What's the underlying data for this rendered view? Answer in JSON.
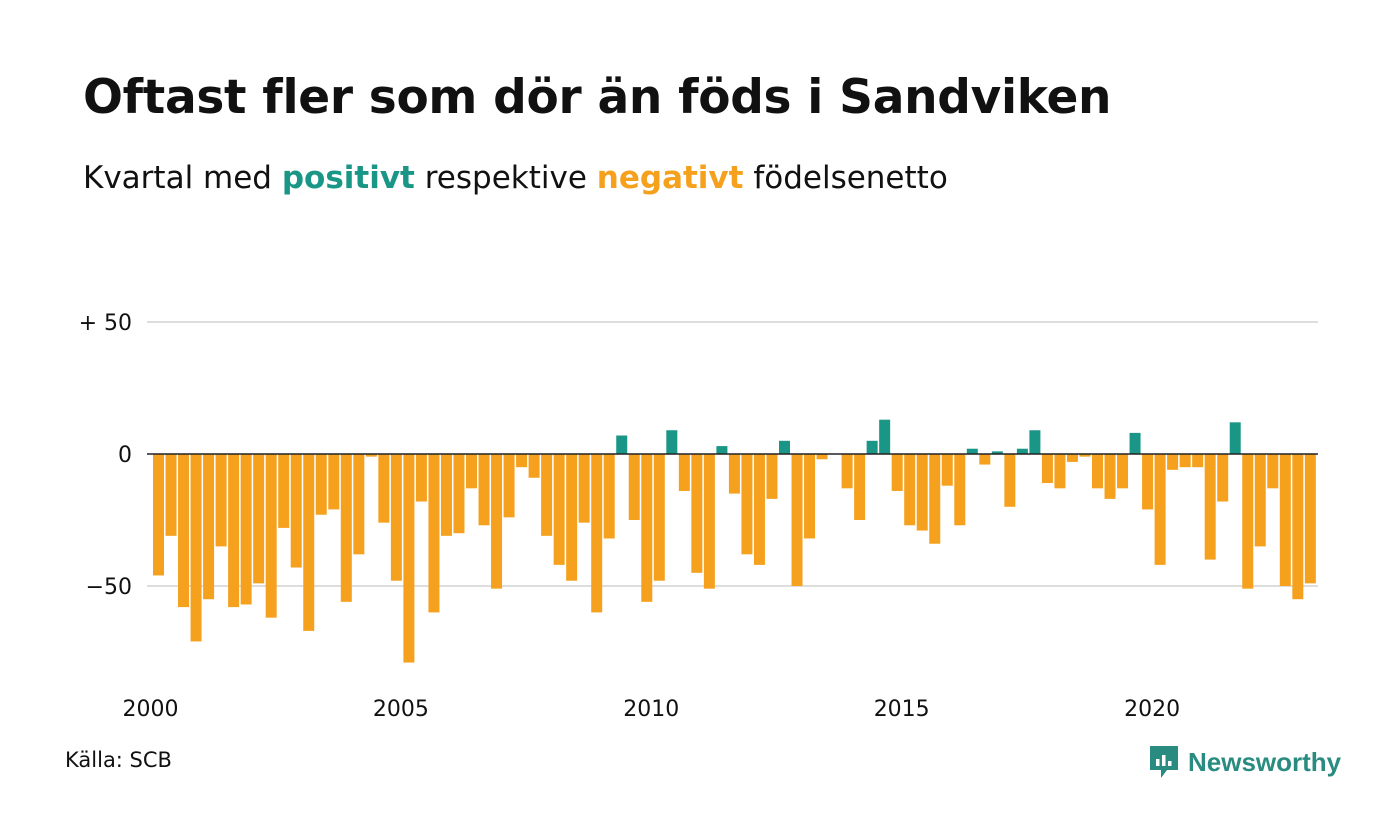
{
  "title": "Oftast fler som dör än föds i Sandviken",
  "subtitle": {
    "prefix": "Kvartal med ",
    "positive": "positivt",
    "middle": " respektive ",
    "negative": "negativt",
    "suffix": " födelsenetto"
  },
  "source": "Källa: SCB",
  "brand": "Newsworthy",
  "colors": {
    "positive": "#1a9687",
    "negative": "#f5a11e",
    "gridline": "#dddddd",
    "zeroline": "#222222",
    "brand": "#2a8c80"
  },
  "chart_data": {
    "type": "bar",
    "title": "Oftast fler som dör än föds i Sandviken",
    "subtitle": "Kvartal med positivt respektive negativt födelsenetto",
    "xlabel": "",
    "ylabel": "",
    "ylim": [
      -85,
      50
    ],
    "yticks": [
      {
        "value": 50,
        "label": "+ 50"
      },
      {
        "value": 0,
        "label": "0"
      },
      {
        "value": -50,
        "label": "−50"
      }
    ],
    "xticks": [
      {
        "year": 2000,
        "label": "2000"
      },
      {
        "year": 2005,
        "label": "2005"
      },
      {
        "year": 2010,
        "label": "2010"
      },
      {
        "year": 2015,
        "label": "2015"
      },
      {
        "year": 2020,
        "label": "2020"
      }
    ],
    "start_year": 2000,
    "periods_per_year": 4,
    "grid": true,
    "legend": "none",
    "values": [
      -46,
      -31,
      -58,
      -71,
      -55,
      -35,
      -58,
      -57,
      -49,
      -62,
      -28,
      -43,
      -67,
      -23,
      -21,
      -56,
      -38,
      -1,
      -26,
      -48,
      -79,
      -18,
      -60,
      -31,
      -30,
      -13,
      -27,
      -51,
      -24,
      -5,
      -9,
      -31,
      -42,
      -48,
      -26,
      -60,
      -32,
      7,
      -25,
      -56,
      -48,
      9,
      -14,
      -45,
      -51,
      3,
      -15,
      -38,
      -42,
      -17,
      5,
      -50,
      -32,
      -2,
      0,
      -13,
      -25,
      5,
      13,
      -14,
      -27,
      -29,
      -34,
      -12,
      -27,
      2,
      -4,
      1,
      -20,
      2,
      9,
      -11,
      -13,
      -3,
      -1,
      -13,
      -17,
      -13,
      8,
      -21,
      -42,
      -6,
      -5,
      -5,
      -40,
      -18,
      12,
      -51,
      -35,
      -13,
      -50,
      -55,
      -49
    ]
  }
}
